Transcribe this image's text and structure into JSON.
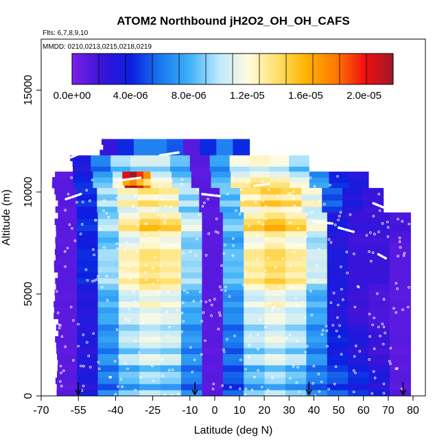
{
  "chart_data": {
    "type": "heatmap",
    "title": "ATOM2 Northbound jH2O2_OH_OH_CAFS",
    "flights_note": "Flts: 6,7,8,9,10",
    "dates_note": "MMDD: 0210,0213,0215,0218,0219",
    "xlabel": "Latitude (deg N)",
    "ylabel": "Altitude (m)",
    "xlim": [
      -70,
      85
    ],
    "ylim": [
      0,
      17500
    ],
    "x_ticks": [
      -70,
      -55,
      -40,
      -25,
      -10,
      0,
      10,
      20,
      30,
      40,
      50,
      60,
      70,
      80
    ],
    "x_tick_labels": [
      "-70",
      "-55",
      "-40",
      "-25",
      "-10",
      "0",
      "10",
      "20",
      "30",
      "40",
      "50",
      "60",
      "70",
      "80"
    ],
    "y_ticks": [
      0,
      5000,
      10000,
      15000
    ],
    "y_tick_labels": [
      "0",
      "5000",
      "10000",
      "15000"
    ],
    "colorbar": {
      "min": 0,
      "max": 2.2e-05,
      "tick_values": [
        0,
        4e-06,
        8e-06,
        1.2e-05,
        1.6e-05,
        2e-05
      ],
      "tick_labels": [
        "0.0e+00",
        "4.0e-06",
        "8.0e-06",
        "1.2e-05",
        "1.6e-05",
        "2.0e-05"
      ],
      "stops": [
        "#7a1fe6",
        "#3a14d8",
        "#0a1fe0",
        "#1a78ef",
        "#3fb2f8",
        "#bde8fb",
        "#fffbe0",
        "#ffe06a",
        "#ffb300",
        "#ff7a00",
        "#f01010",
        "#a0182a"
      ],
      "segments": 12
    },
    "profiles": [
      {
        "lat": -55,
        "marker": "arrow"
      },
      {
        "lat": -8,
        "marker": "arrow"
      },
      {
        "lat": 38,
        "marker": "arrow"
      },
      {
        "lat": 76,
        "marker": "arrow"
      }
    ],
    "rows": [
      {
        "alt_min": 11800,
        "alt_max": 12600,
        "lat_min": -46,
        "lat_max": 14,
        "values": [
          2e-06,
          4e-06,
          6e-06,
          6e-06,
          5e-06,
          1e-06,
          4e-06,
          6e-06,
          4e-06
        ]
      },
      {
        "alt_min": 11000,
        "alt_max": 11800,
        "lat_min": -58,
        "lat_max": 38,
        "values": [
          3e-06,
          6e-06,
          9e-06,
          1e-05,
          1e-05,
          8e-06,
          1e-06,
          7e-06,
          1.1e-05,
          1.15e-05,
          1.1e-05,
          9e-06
        ]
      },
      {
        "alt_min": 10200,
        "alt_max": 11000,
        "lat_min": -65,
        "lat_max": 62,
        "values": [
          1e-06,
          4e-06,
          8e-06,
          1.1e-05,
          1.2e-05,
          1.15e-05,
          9e-06,
          1e-06,
          8e-06,
          1.2e-05,
          1.3e-05,
          1.25e-05,
          1.1e-05,
          7e-06,
          4e-06,
          3e-06
        ]
      },
      {
        "alt_min": 10000,
        "alt_max": 11000,
        "lat_min": -37,
        "lat_max": -26,
        "values": [
          1.9e-05,
          2.05e-05,
          1.8e-05,
          1.6e-05
        ]
      },
      {
        "alt_min": 9000,
        "alt_max": 10200,
        "lat_min": -64,
        "lat_max": 68,
        "values": [
          1e-06,
          4e-06,
          9e-06,
          1.15e-05,
          1.25e-05,
          1.2e-05,
          9e-06,
          1e-06,
          8e-06,
          1.25e-05,
          1.35e-05,
          1.3e-05,
          1.1e-05,
          5e-06,
          3e-06,
          2e-06
        ]
      },
      {
        "alt_min": 7500,
        "alt_max": 9000,
        "lat_min": -64,
        "lat_max": 79,
        "values": [
          1e-06,
          4e-06,
          9e-06,
          1.2e-05,
          1.35e-05,
          1.3e-05,
          1e-05,
          1e-06,
          8e-06,
          1.3e-05,
          1.4e-05,
          1.3e-05,
          1.05e-05,
          3e-06,
          2e-06,
          2e-06,
          1.5e-06
        ]
      },
      {
        "alt_min": 5500,
        "alt_max": 7500,
        "lat_min": -64,
        "lat_max": 79,
        "values": [
          1e-06,
          4e-06,
          9e-06,
          1.2e-05,
          1.3e-05,
          1.25e-05,
          9e-06,
          1e-06,
          8e-06,
          1.25e-05,
          1.35e-05,
          1.25e-05,
          1e-05,
          3e-06,
          2e-06,
          2e-06,
          1e-06
        ]
      },
      {
        "alt_min": 3500,
        "alt_max": 5500,
        "lat_min": -64,
        "lat_max": 79,
        "values": [
          1e-06,
          3e-06,
          8e-06,
          1.1e-05,
          1.2e-05,
          1.15e-05,
          8e-06,
          1e-06,
          7e-06,
          1.1e-05,
          1.2e-05,
          1.1e-05,
          8e-06,
          3e-06,
          2e-06,
          1.5e-06,
          1e-06
        ]
      },
      {
        "alt_min": 1500,
        "alt_max": 3500,
        "lat_min": -64,
        "lat_max": 79,
        "values": [
          1e-06,
          3e-06,
          7e-06,
          1e-05,
          1.1e-05,
          1.05e-05,
          7e-06,
          1e-06,
          6e-06,
          1e-05,
          1.1e-05,
          1e-05,
          7e-06,
          4e-06,
          3e-06,
          2e-06,
          1e-06
        ]
      },
      {
        "alt_min": 0,
        "alt_max": 1500,
        "lat_min": -64,
        "lat_max": 79,
        "values": [
          1e-06,
          3e-06,
          6e-06,
          8e-06,
          9e-06,
          8.5e-06,
          6e-06,
          1e-06,
          5e-06,
          8e-06,
          9e-06,
          8e-06,
          6e-06,
          5e-06,
          4e-06,
          3e-06,
          1e-06
        ]
      }
    ],
    "flight_tracks": [
      {
        "x": [
          -58,
          -52
        ],
        "y": [
          11700,
          12000
        ]
      },
      {
        "x": [
          -22,
          -14
        ],
        "y": [
          11800,
          11950
        ]
      },
      {
        "x": [
          -40,
          -30
        ],
        "y": [
          10550,
          10700
        ]
      },
      {
        "x": [
          -60,
          -54
        ],
        "y": [
          9650,
          9900
        ]
      },
      {
        "x": [
          -5,
          2
        ],
        "y": [
          9900,
          9800
        ]
      },
      {
        "x": [
          16,
          22
        ],
        "y": [
          10300,
          10400
        ]
      },
      {
        "x": [
          40,
          48
        ],
        "y": [
          8550,
          8450
        ]
      },
      {
        "x": [
          50,
          56
        ],
        "y": [
          8250,
          8050
        ]
      },
      {
        "x": [
          64,
          68
        ],
        "y": [
          9450,
          9250
        ]
      },
      {
        "x": [
          66,
          69
        ],
        "y": [
          6950,
          6750
        ]
      }
    ]
  }
}
